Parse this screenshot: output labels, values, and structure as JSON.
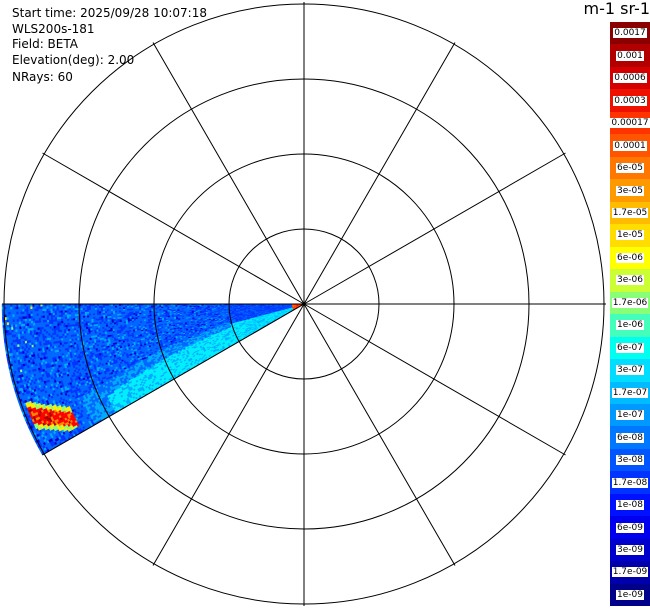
{
  "info": {
    "start_time": "Start time: 2025/09/28 10:07:18",
    "instrument": "WLS200s-181",
    "field": "Field: BETA",
    "elevation": "Elevation(deg): 2.00",
    "nrays": "NRays: 60"
  },
  "colorbar": {
    "unit_label": "m-1 sr-1",
    "labels": [
      "0.0017",
      "0.001",
      "0.0006",
      "0.0003",
      "0.00017",
      "0.0001",
      "6e-05",
      "3e-05",
      "1.7e-05",
      "1e-05",
      "6e-06",
      "3e-06",
      "1.7e-06",
      "1e-06",
      "6e-07",
      "3e-07",
      "1.7e-07",
      "1e-07",
      "6e-08",
      "3e-08",
      "1.7e-08",
      "1e-08",
      "6e-09",
      "3e-09",
      "1.7e-09",
      "1e-09"
    ],
    "colors": [
      "#8b0000",
      "#b20000",
      "#d40000",
      "#ee1100",
      "#ff3300",
      "#ff5500",
      "#ff7700",
      "#ff9900",
      "#ffbb00",
      "#ffdd00",
      "#ffff00",
      "#ccff33",
      "#88ff77",
      "#44ffbb",
      "#00ffee",
      "#00ddff",
      "#00bbff",
      "#0099ff",
      "#0077ff",
      "#0055ff",
      "#0033ff",
      "#0011ff",
      "#0000ee",
      "#0000cc",
      "#0000aa",
      "#00008b"
    ]
  },
  "plot": {
    "sector_start_azimuth_deg": 240,
    "sector_end_azimuth_deg": 270,
    "ring_count": 4,
    "spoke_step_deg": 30,
    "palette": {
      "deep_blue": "#0000cc",
      "blue": "#0033ff",
      "mid_blue": "#0066ff",
      "cyan_blue": "#00aaff",
      "cyan": "#00eeff",
      "green": "#88ff77",
      "yellow": "#ffee00",
      "orange": "#ff8800",
      "red": "#ff0000",
      "dark_red": "#aa0000"
    }
  }
}
